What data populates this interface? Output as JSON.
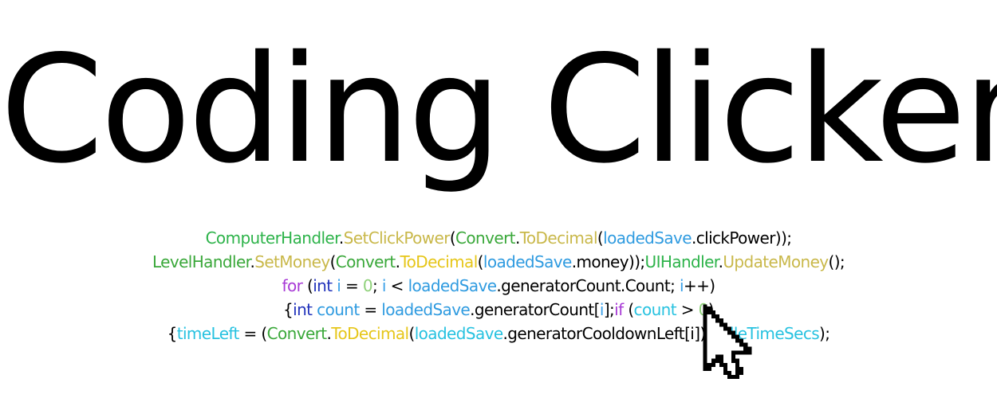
{
  "title": "Coding Clicker",
  "colors": {
    "type_green": "#2db34a",
    "method_yellow": "#c9b84a",
    "convert_green": "#3aa83a",
    "todecimal_yellow": "#e6c619",
    "variable_blue": "#2f9be0",
    "keyword_purple": "#a83bd6",
    "int_blue": "#2233bb",
    "loop_var_blue": "#3aa0e8",
    "literal_green": "#8fd17a",
    "text_black": "#000000",
    "cyan": "#27c2e0"
  },
  "code_lines": [
    [
      {
        "text": "ComputerHandler",
        "color": "#2db34a"
      },
      {
        "text": ".",
        "color": "#000000"
      },
      {
        "text": "SetClickPower",
        "color": "#c9b84a"
      },
      {
        "text": "(",
        "color": "#000000"
      },
      {
        "text": "Convert",
        "color": "#3aa83a"
      },
      {
        "text": ".",
        "color": "#000000"
      },
      {
        "text": "ToDecimal",
        "color": "#c9b84a"
      },
      {
        "text": "(",
        "color": "#000000"
      },
      {
        "text": "loadedSave",
        "color": "#2f9be0"
      },
      {
        "text": ".clickPower));",
        "color": "#000000"
      }
    ],
    [
      {
        "text": "LevelHandler",
        "color": "#3aa83a"
      },
      {
        "text": ".",
        "color": "#000000"
      },
      {
        "text": "SetMoney",
        "color": "#c9b84a"
      },
      {
        "text": "(",
        "color": "#000000"
      },
      {
        "text": "Convert",
        "color": "#3aa83a"
      },
      {
        "text": ".",
        "color": "#000000"
      },
      {
        "text": "ToDecimal",
        "color": "#e6c619"
      },
      {
        "text": "(",
        "color": "#000000"
      },
      {
        "text": "loadedSave",
        "color": "#2f9be0"
      },
      {
        "text": ".money));",
        "color": "#000000"
      },
      {
        "text": "UIHandler",
        "color": "#2db34a"
      },
      {
        "text": ".",
        "color": "#000000"
      },
      {
        "text": "UpdateMoney",
        "color": "#c9b84a"
      },
      {
        "text": "();",
        "color": "#000000"
      }
    ],
    [
      {
        "text": "for",
        "color": "#a83bd6"
      },
      {
        "text": " (",
        "color": "#000000"
      },
      {
        "text": "int",
        "color": "#2233bb"
      },
      {
        "text": " ",
        "color": "#000000"
      },
      {
        "text": "i",
        "color": "#3aa0e8"
      },
      {
        "text": " = ",
        "color": "#000000"
      },
      {
        "text": "0",
        "color": "#8fd17a"
      },
      {
        "text": "; ",
        "color": "#000000"
      },
      {
        "text": "i",
        "color": "#3aa0e8"
      },
      {
        "text": " < ",
        "color": "#000000"
      },
      {
        "text": "loadedSave",
        "color": "#2f9be0"
      },
      {
        "text": ".generatorCount.Count; ",
        "color": "#000000"
      },
      {
        "text": "i",
        "color": "#3aa0e8"
      },
      {
        "text": "++)",
        "color": "#000000"
      }
    ],
    [
      {
        "text": "{",
        "color": "#000000"
      },
      {
        "text": "int",
        "color": "#2233bb"
      },
      {
        "text": " ",
        "color": "#000000"
      },
      {
        "text": "count",
        "color": "#2f9be0"
      },
      {
        "text": " = ",
        "color": "#000000"
      },
      {
        "text": "loadedSave",
        "color": "#2f9be0"
      },
      {
        "text": ".generatorCount[",
        "color": "#000000"
      },
      {
        "text": "i",
        "color": "#3aa0e8"
      },
      {
        "text": "];",
        "color": "#000000"
      },
      {
        "text": "if",
        "color": "#a83bd6"
      },
      {
        "text": " (",
        "color": "#000000"
      },
      {
        "text": "count",
        "color": "#27c2e0"
      },
      {
        "text": " > ",
        "color": "#000000"
      },
      {
        "text": "0",
        "color": "#8fd17a"
      },
      {
        "text": ")",
        "color": "#000000"
      }
    ],
    [
      {
        "text": "{",
        "color": "#000000"
      },
      {
        "text": "timeLeft",
        "color": "#27c2e0"
      },
      {
        "text": " = (",
        "color": "#000000"
      },
      {
        "text": "Convert",
        "color": "#3aa83a"
      },
      {
        "text": ".",
        "color": "#000000"
      },
      {
        "text": "ToDecimal",
        "color": "#e6c619"
      },
      {
        "text": "(",
        "color": "#000000"
      },
      {
        "text": "loadedSave",
        "color": "#27c2e0"
      },
      {
        "text": ".generatorCooldownLeft",
        "color": "#000000"
      },
      {
        "text": "[i]) - ",
        "color": "#000000"
      },
      {
        "text": "idleTimeSecs",
        "color": "#27c2e0"
      },
      {
        "text": ");",
        "color": "#000000"
      }
    ]
  ],
  "cursor": {
    "icon": "mouse-pointer-icon"
  }
}
